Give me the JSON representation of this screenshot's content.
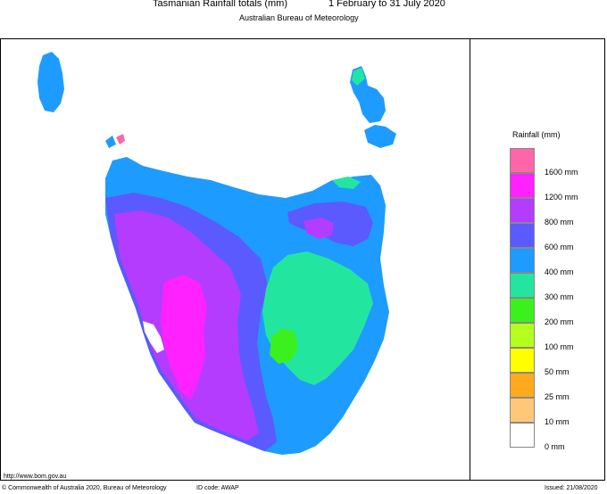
{
  "header": {
    "title": "Tasmanian Rainfall totals (mm)",
    "period": "1 February to 31 July 2020",
    "subtitle": "Australian Bureau of Meteorology"
  },
  "legend": {
    "title": "Rainfall (mm)",
    "bins": [
      {
        "label": "1600 mm",
        "color": "#ff66a8"
      },
      {
        "label": "1200 mm",
        "color": "#ff22ff"
      },
      {
        "label": "800 mm",
        "color": "#b43cff"
      },
      {
        "label": "600 mm",
        "color": "#5a5aff"
      },
      {
        "label": "400 mm",
        "color": "#1e9bff"
      },
      {
        "label": "300 mm",
        "color": "#22e6a0"
      },
      {
        "label": "200 mm",
        "color": "#3cf01e"
      },
      {
        "label": "100 mm",
        "color": "#b4ff1e"
      },
      {
        "label": "50 mm",
        "color": "#ffff00"
      },
      {
        "label": "25 mm",
        "color": "#ffaa1e"
      },
      {
        "label": "10 mm",
        "color": "#ffc878"
      },
      {
        "label": "0 mm",
        "color": "#ffffff"
      }
    ]
  },
  "footer": {
    "url": "http://www.bom.gov.au",
    "copyright": "© Commonwealth of Australia 2020, Bureau of Meteorology",
    "id_code": "ID code: AWAP",
    "issued": "Issued: 21/08/2020"
  }
}
